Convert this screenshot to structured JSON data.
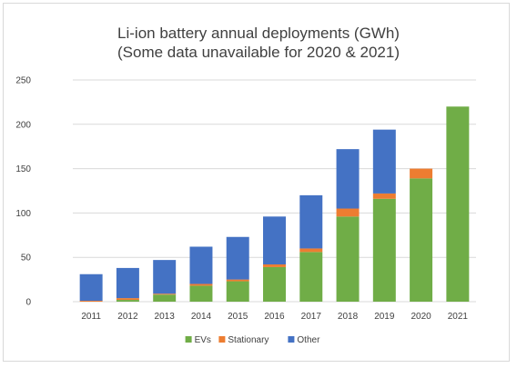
{
  "chart_data": {
    "type": "bar",
    "stacked": true,
    "title": "Li-ion battery annual deployments (GWh)",
    "subtitle": "(Some data unavailable for 2020 & 2021)",
    "categories": [
      "2011",
      "2012",
      "2013",
      "2014",
      "2015",
      "2016",
      "2017",
      "2018",
      "2019",
      "2020",
      "2021"
    ],
    "series": [
      {
        "name": "EVs",
        "color": "#70ad47",
        "values": [
          0,
          2,
          8,
          18,
          23,
          39,
          56,
          96,
          116,
          139,
          220
        ]
      },
      {
        "name": "Stationary",
        "color": "#ed7d31",
        "values": [
          1,
          2,
          1,
          2,
          2,
          3,
          4,
          9,
          6,
          11,
          0
        ]
      },
      {
        "name": "Other",
        "color": "#4472c4",
        "values": [
          30,
          34,
          38,
          42,
          48,
          54,
          60,
          67,
          72,
          0,
          0
        ]
      }
    ],
    "ylim": [
      0,
      250
    ],
    "yticks": [
      0,
      50,
      100,
      150,
      200,
      250
    ],
    "xlabel": "",
    "ylabel": "",
    "grid": true,
    "legend_position": "bottom"
  }
}
